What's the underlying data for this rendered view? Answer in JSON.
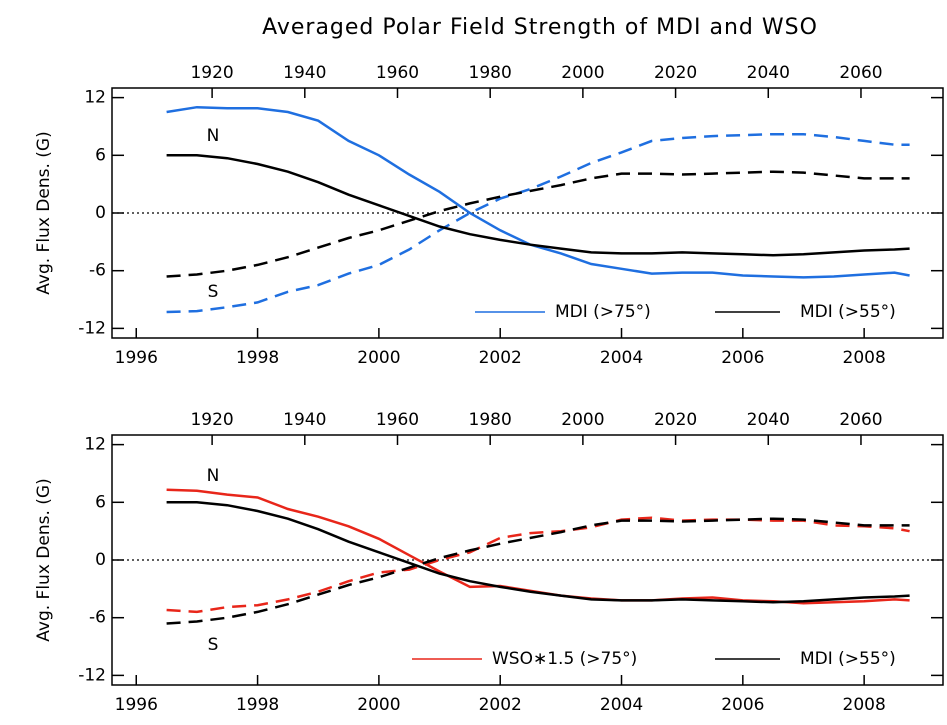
{
  "chart_data": [
    {
      "type": "line",
      "title": "Averaged Polar Field Strength of MDI and WSO",
      "ylabel": "Avg. Flux Dens. (G)",
      "x": [
        1996.5,
        1997,
        1997.5,
        1998,
        1998.5,
        1999,
        1999.5,
        2000,
        2000.5,
        2001,
        2001.5,
        2002,
        2002.5,
        2003,
        2003.5,
        2004,
        2004.5,
        2005,
        2005.5,
        2006,
        2006.5,
        2007,
        2007.5,
        2008,
        2008.5,
        2008.75
      ],
      "xlim": [
        1995.6,
        2009.3
      ],
      "xticks": [
        1996,
        1998,
        2000,
        2002,
        2004,
        2006,
        2008
      ],
      "x2lim": [
        1898.4,
        2077.7
      ],
      "x2ticks": [
        1920,
        1940,
        1960,
        1980,
        2000,
        2020,
        2040,
        2060
      ],
      "ylim": [
        -13,
        13
      ],
      "yticks": [
        -12,
        -6,
        0,
        6,
        12
      ],
      "hline": 0,
      "series": [
        {
          "color": "#1f6fe0",
          "style": "solid",
          "values": [
            10.5,
            11,
            10.9,
            10.9,
            10.5,
            9.6,
            7.5,
            6,
            4,
            2.2,
            0,
            -1.8,
            -3.3,
            -4.2,
            -5.3,
            -5.8,
            -6.3,
            -6.2,
            -6.2,
            -6.5,
            -6.6,
            -6.7,
            -6.6,
            -6.4,
            -6.2,
            -6.5
          ]
        },
        {
          "color": "#1f6fe0",
          "style": "dashed",
          "values": [
            -10.3,
            -10.2,
            -9.8,
            -9.3,
            -8.2,
            -7.5,
            -6.3,
            -5.4,
            -3.8,
            -1.8,
            0,
            1.5,
            2.5,
            3.8,
            5.2,
            6.3,
            7.5,
            7.8,
            8,
            8.1,
            8.2,
            8.2,
            7.9,
            7.5,
            7.1,
            7.1
          ]
        },
        {
          "color": "#000000",
          "style": "solid",
          "values": [
            6,
            6,
            5.7,
            5.1,
            4.3,
            3.2,
            1.9,
            0.8,
            -0.3,
            -1.4,
            -2.2,
            -2.8,
            -3.3,
            -3.7,
            -4.1,
            -4.2,
            -4.2,
            -4.1,
            -4.2,
            -4.3,
            -4.4,
            -4.3,
            -4.1,
            -3.9,
            -3.8,
            -3.7
          ]
        },
        {
          "color": "#000000",
          "style": "dashed",
          "values": [
            -6.6,
            -6.4,
            -6,
            -5.4,
            -4.6,
            -3.6,
            -2.6,
            -1.8,
            -0.8,
            0.2,
            1,
            1.7,
            2.3,
            2.9,
            3.6,
            4.1,
            4.1,
            4,
            4.1,
            4.2,
            4.3,
            4.2,
            3.9,
            3.6,
            3.6,
            3.6
          ]
        }
      ],
      "legend": [
        {
          "label": "MDI (>75°)",
          "color": "#1f6fe0"
        },
        {
          "label": "MDI (>55°)",
          "color": "#000000"
        }
      ],
      "annotations": [
        "N",
        "S"
      ]
    },
    {
      "type": "line",
      "ylabel": "Avg. Flux Dens. (G)",
      "x": [
        1996.5,
        1997,
        1997.5,
        1998,
        1998.5,
        1999,
        1999.5,
        2000,
        2000.5,
        2001,
        2001.5,
        2002,
        2002.5,
        2003,
        2003.5,
        2004,
        2004.5,
        2005,
        2005.5,
        2006,
        2006.5,
        2007,
        2007.5,
        2008,
        2008.5,
        2008.75
      ],
      "xlim": [
        1995.6,
        2009.3
      ],
      "xticks": [
        1996,
        1998,
        2000,
        2002,
        2004,
        2006,
        2008
      ],
      "x2lim": [
        1898.4,
        2077.7
      ],
      "x2ticks": [
        1920,
        1940,
        1960,
        1980,
        2000,
        2020,
        2040,
        2060
      ],
      "ylim": [
        -13,
        13
      ],
      "yticks": [
        -12,
        -6,
        0,
        6,
        12
      ],
      "hline": 0,
      "series": [
        {
          "color": "#e8261a",
          "style": "solid",
          "values": [
            7.3,
            7.2,
            6.8,
            6.5,
            5.3,
            4.5,
            3.5,
            2.2,
            0.5,
            -1.2,
            -2.8,
            -2.7,
            -3.2,
            -3.7,
            -4,
            -4.2,
            -4.2,
            -4,
            -3.9,
            -4.2,
            -4.3,
            -4.5,
            -4.4,
            -4.3,
            -4.1,
            -4.2
          ]
        },
        {
          "color": "#e8261a",
          "style": "dashed",
          "values": [
            -5.2,
            -5.4,
            -4.9,
            -4.7,
            -4.1,
            -3.3,
            -2.2,
            -1.3,
            -1,
            0,
            0.8,
            2.3,
            2.8,
            3,
            3.4,
            4.2,
            4.4,
            4.1,
            4.2,
            4.2,
            4.1,
            4.1,
            3.6,
            3.5,
            3.3,
            3
          ]
        },
        {
          "color": "#000000",
          "style": "solid",
          "values": [
            6,
            6,
            5.7,
            5.1,
            4.3,
            3.2,
            1.9,
            0.8,
            -0.3,
            -1.4,
            -2.2,
            -2.8,
            -3.3,
            -3.7,
            -4.1,
            -4.2,
            -4.2,
            -4.1,
            -4.2,
            -4.3,
            -4.4,
            -4.3,
            -4.1,
            -3.9,
            -3.8,
            -3.7
          ]
        },
        {
          "color": "#000000",
          "style": "dashed",
          "values": [
            -6.6,
            -6.4,
            -6,
            -5.4,
            -4.6,
            -3.6,
            -2.6,
            -1.8,
            -0.8,
            0.2,
            1,
            1.7,
            2.3,
            2.9,
            3.6,
            4.1,
            4.1,
            4,
            4.1,
            4.2,
            4.3,
            4.2,
            3.9,
            3.6,
            3.6,
            3.6
          ]
        }
      ],
      "legend": [
        {
          "label": "WSO∗1.5 (>75°)",
          "color": "#e8261a"
        },
        {
          "label": "MDI (>55°)",
          "color": "#000000"
        }
      ],
      "annotations": [
        "N",
        "S"
      ]
    }
  ]
}
